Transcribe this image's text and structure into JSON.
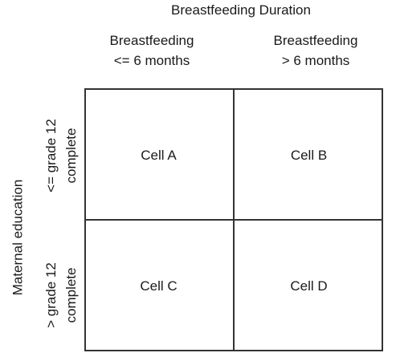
{
  "diagram": {
    "top_title": "Breastfeeding Duration",
    "columns": [
      {
        "line1": "Breastfeeding",
        "line2": "<= 6 months"
      },
      {
        "line1": "Breastfeeding",
        "line2": "> 6 months"
      }
    ],
    "row_axis_title": "Maternal education",
    "rows": [
      {
        "line1": "<= grade 12",
        "line2": "complete"
      },
      {
        "line1": "> grade 12",
        "line2": "complete"
      }
    ],
    "cells": {
      "a": "Cell A",
      "b": "Cell B",
      "c": "Cell C",
      "d": "Cell D"
    }
  }
}
